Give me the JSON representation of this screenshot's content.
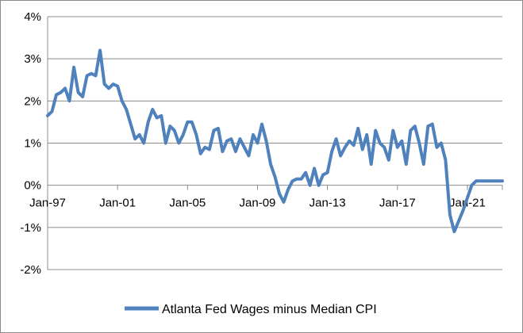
{
  "chart_data": {
    "type": "line",
    "title": "",
    "xlabel": "",
    "ylabel": "",
    "ylim": [
      -2,
      4
    ],
    "xlim": [
      "1997-01",
      "2023-01"
    ],
    "y_tick_labels": [
      "4%",
      "3%",
      "2%",
      "1%",
      "0%",
      "-1%",
      "-2%"
    ],
    "y_tick_values": [
      4,
      3,
      2,
      1,
      0,
      -1,
      -2
    ],
    "x_tick_labels": [
      "Jan-97",
      "Jan-01",
      "Jan-05",
      "Jan-09",
      "Jan-13",
      "Jan-17",
      "Jan-21"
    ],
    "x_tick_dates": [
      "1997-01",
      "2001-01",
      "2005-01",
      "2009-01",
      "2013-01",
      "2017-01",
      "2021-01"
    ],
    "grid": "horizontal",
    "legend_placement": "bottom",
    "series": [
      {
        "name": "Atlanta Fed Wages minus Median CPI",
        "color": "#4f81bd",
        "x": [
          "1997-01",
          "1997-04",
          "1997-07",
          "1997-10",
          "1998-01",
          "1998-04",
          "1998-07",
          "1998-10",
          "1999-01",
          "1999-04",
          "1999-07",
          "1999-10",
          "2000-01",
          "2000-04",
          "2000-07",
          "2000-10",
          "2001-01",
          "2001-04",
          "2001-07",
          "2001-10",
          "2002-01",
          "2002-04",
          "2002-07",
          "2002-10",
          "2003-01",
          "2003-04",
          "2003-07",
          "2003-10",
          "2004-01",
          "2004-04",
          "2004-07",
          "2004-10",
          "2005-01",
          "2005-04",
          "2005-07",
          "2005-10",
          "2006-01",
          "2006-04",
          "2006-07",
          "2006-10",
          "2007-01",
          "2007-04",
          "2007-07",
          "2007-10",
          "2008-01",
          "2008-04",
          "2008-07",
          "2008-10",
          "2009-01",
          "2009-04",
          "2009-07",
          "2009-10",
          "2010-01",
          "2010-04",
          "2010-07",
          "2010-10",
          "2011-01",
          "2011-04",
          "2011-07",
          "2011-10",
          "2012-01",
          "2012-04",
          "2012-07",
          "2012-10",
          "2013-01",
          "2013-04",
          "2013-07",
          "2013-10",
          "2014-01",
          "2014-04",
          "2014-07",
          "2014-10",
          "2015-01",
          "2015-04",
          "2015-07",
          "2015-10",
          "2016-01",
          "2016-04",
          "2016-07",
          "2016-10",
          "2017-01",
          "2017-04",
          "2017-07",
          "2017-10",
          "2018-01",
          "2018-04",
          "2018-07",
          "2018-10",
          "2019-01",
          "2019-04",
          "2019-07",
          "2019-10",
          "2020-01",
          "2020-04",
          "2020-07",
          "2020-10",
          "2021-01",
          "2021-04",
          "2021-07",
          "2021-10",
          "2022-01",
          "2022-04",
          "2022-07",
          "2022-10",
          "2023-01"
        ],
        "values": [
          1.65,
          1.75,
          2.15,
          2.2,
          2.3,
          2.0,
          2.8,
          2.2,
          2.1,
          2.6,
          2.65,
          2.6,
          3.2,
          2.4,
          2.3,
          2.4,
          2.35,
          2.0,
          1.8,
          1.45,
          1.1,
          1.2,
          1.0,
          1.5,
          1.8,
          1.6,
          1.65,
          1.0,
          1.4,
          1.3,
          1.0,
          1.2,
          1.5,
          1.5,
          1.2,
          0.75,
          0.9,
          0.85,
          1.3,
          1.35,
          0.8,
          1.05,
          1.1,
          0.8,
          1.1,
          0.9,
          0.7,
          1.2,
          1.0,
          1.45,
          1.05,
          0.5,
          0.2,
          -0.2,
          -0.4,
          -0.1,
          0.1,
          0.15,
          0.15,
          0.3,
          0.0,
          0.4,
          0.0,
          0.25,
          0.3,
          0.8,
          1.1,
          0.7,
          0.9,
          1.05,
          0.95,
          1.35,
          0.85,
          1.2,
          0.5,
          1.3,
          1.0,
          0.9,
          0.6,
          1.3,
          0.9,
          1.05,
          0.5,
          1.3,
          1.4,
          1.0,
          0.5,
          1.4,
          1.45,
          0.9,
          1.0,
          0.6,
          -0.7,
          -1.1,
          -0.85,
          -0.6,
          -0.3,
          0.0,
          0.1,
          0.1,
          0.1,
          0.1,
          0.1,
          0.1,
          0.1
        ]
      }
    ]
  }
}
